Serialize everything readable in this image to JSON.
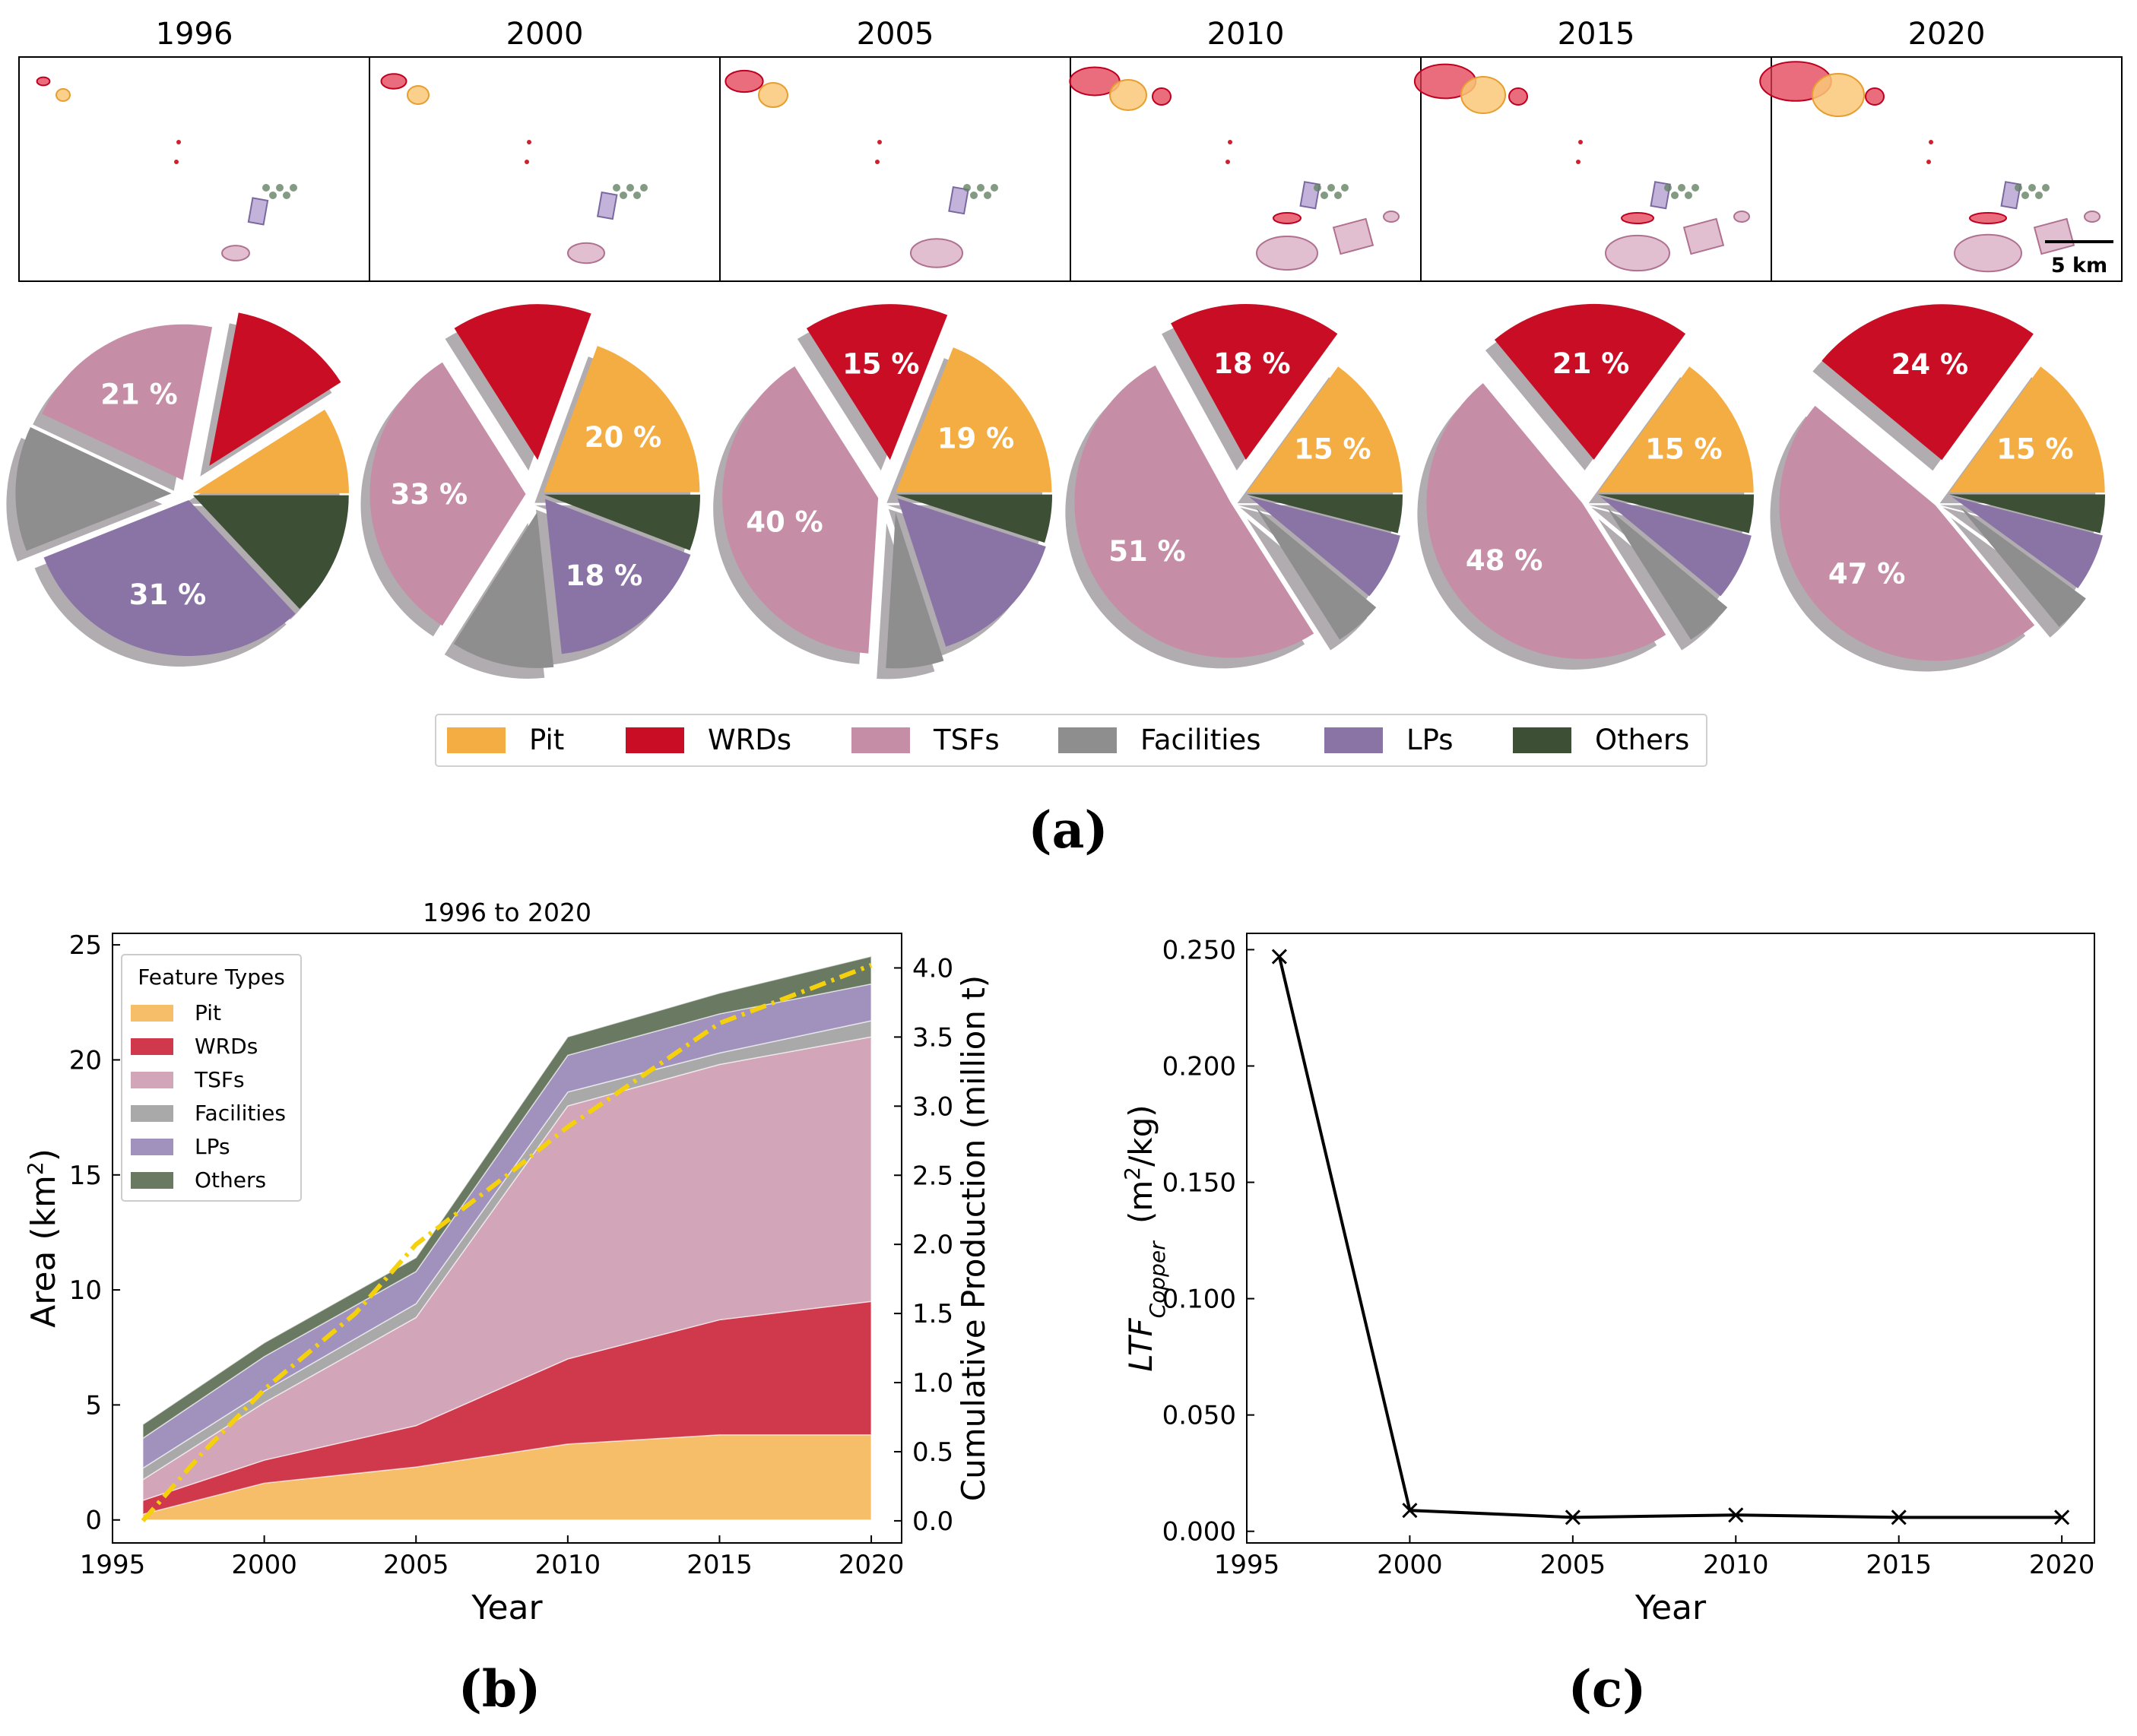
{
  "panel_labels": {
    "a": "(a)",
    "b": "(b)",
    "c": "(c)"
  },
  "colors": {
    "Pit": "#F4AD42",
    "WRDs": "#C80D24",
    "TSFs": "#C68EA6",
    "Facilities": "#8E8E8E",
    "LPs": "#8A74A6",
    "Others": "#3D5035",
    "production_line": "#F5D10D"
  },
  "maps": {
    "years": [
      "1996",
      "2000",
      "2005",
      "2010",
      "2015",
      "2020"
    ],
    "scalebar_label": "5 km"
  },
  "legend_a": [
    "Pit",
    "WRDs",
    "TSFs",
    "Facilities",
    "LPs",
    "Others"
  ],
  "chart_data": [
    {
      "type": "pie",
      "id": "panel-a-pies",
      "categories": [
        "Pit",
        "WRDs",
        "TSFs",
        "Facilities",
        "LPs",
        "Others"
      ],
      "pies": [
        {
          "year": "1996",
          "values": [
            9,
            13,
            21,
            13,
            31,
            13
          ],
          "labels": [
            "",
            "",
            "21 %",
            "",
            "31 %",
            ""
          ]
        },
        {
          "year": "2000",
          "values": [
            20,
            15,
            33,
            11,
            18,
            6
          ],
          "labels": [
            "20 %",
            "",
            "33 %",
            "",
            "18 %",
            ""
          ]
        },
        {
          "year": "2005",
          "values": [
            19,
            15,
            40,
            6,
            15,
            5
          ],
          "labels": [
            "19 %",
            "15 %",
            "40 %",
            "",
            "",
            ""
          ]
        },
        {
          "year": "2010",
          "values": [
            15,
            18,
            51,
            5,
            7,
            4
          ],
          "labels": [
            "15 %",
            "18 %",
            "51 %",
            "",
            "",
            ""
          ]
        },
        {
          "year": "2015",
          "values": [
            15,
            21,
            48,
            5,
            7,
            4
          ],
          "labels": [
            "15 %",
            "21 %",
            "48 %",
            "",
            "",
            ""
          ]
        },
        {
          "year": "2020",
          "values": [
            15,
            24,
            47,
            4,
            6,
            4
          ],
          "labels": [
            "15 %",
            "24 %",
            "47 %",
            "",
            "",
            ""
          ]
        }
      ]
    },
    {
      "type": "area",
      "id": "panel-b",
      "title": "1996 to 2020",
      "xlabel": "Year",
      "ylabel": "Area (km",
      "ylabel_sup": "2",
      "ylabel_end": ")",
      "y2label": "Cumulative Production (million t)",
      "x": [
        1996,
        2000,
        2005,
        2010,
        2015,
        2020
      ],
      "xlim": [
        1995,
        2021
      ],
      "ylim": [
        -1,
        25.5
      ],
      "y2lim": [
        -0.16,
        4.25
      ],
      "xticks": [
        "1995",
        "2000",
        "2005",
        "2010",
        "2015",
        "2020"
      ],
      "yticks": [
        "0",
        "5",
        "10",
        "15",
        "20",
        "25"
      ],
      "y2ticks": [
        "0.0",
        "0.5",
        "1.0",
        "1.5",
        "2.0",
        "2.5",
        "3.0",
        "3.5",
        "4.0"
      ],
      "legend_title": "Feature Types",
      "series": [
        {
          "name": "Pit",
          "values": [
            0.25,
            1.6,
            2.3,
            3.3,
            3.7,
            3.7
          ]
        },
        {
          "name": "WRDs",
          "values": [
            0.6,
            1.0,
            1.8,
            3.7,
            5.0,
            5.8
          ]
        },
        {
          "name": "TSFs",
          "values": [
            0.9,
            2.5,
            4.7,
            11.0,
            11.1,
            11.5
          ]
        },
        {
          "name": "Facilities",
          "values": [
            0.5,
            0.5,
            0.6,
            0.6,
            0.5,
            0.7
          ]
        },
        {
          "name": "LPs",
          "values": [
            1.3,
            1.5,
            1.4,
            1.6,
            1.7,
            1.6
          ]
        },
        {
          "name": "Others",
          "values": [
            0.6,
            0.6,
            0.6,
            0.8,
            0.9,
            1.2
          ]
        }
      ],
      "production": {
        "name": "Cumulative Production",
        "x": [
          1996,
          1998,
          2000,
          2003,
          2005,
          2008,
          2010,
          2013,
          2015,
          2018,
          2020
        ],
        "values": [
          0.0,
          0.5,
          0.95,
          1.5,
          2.0,
          2.5,
          2.85,
          3.3,
          3.6,
          3.85,
          4.02
        ]
      }
    },
    {
      "type": "line",
      "id": "panel-c",
      "xlabel": "Year",
      "ylabel": "LTF",
      "ylabel_sub": "Copper",
      "ylabel_unit": "(m",
      "ylabel_unit_sup": "2",
      "ylabel_unit_end": "/kg)",
      "x": [
        1996,
        2000,
        2005,
        2010,
        2015,
        2020
      ],
      "values": [
        0.247,
        0.009,
        0.006,
        0.007,
        0.006,
        0.006
      ],
      "xlim": [
        1995,
        2021
      ],
      "ylim": [
        -0.005,
        0.257
      ],
      "xticks": [
        "1995",
        "2000",
        "2005",
        "2010",
        "2015",
        "2020"
      ],
      "yticks": [
        "0.000",
        "0.050",
        "0.100",
        "0.150",
        "0.200",
        "0.250"
      ]
    }
  ]
}
